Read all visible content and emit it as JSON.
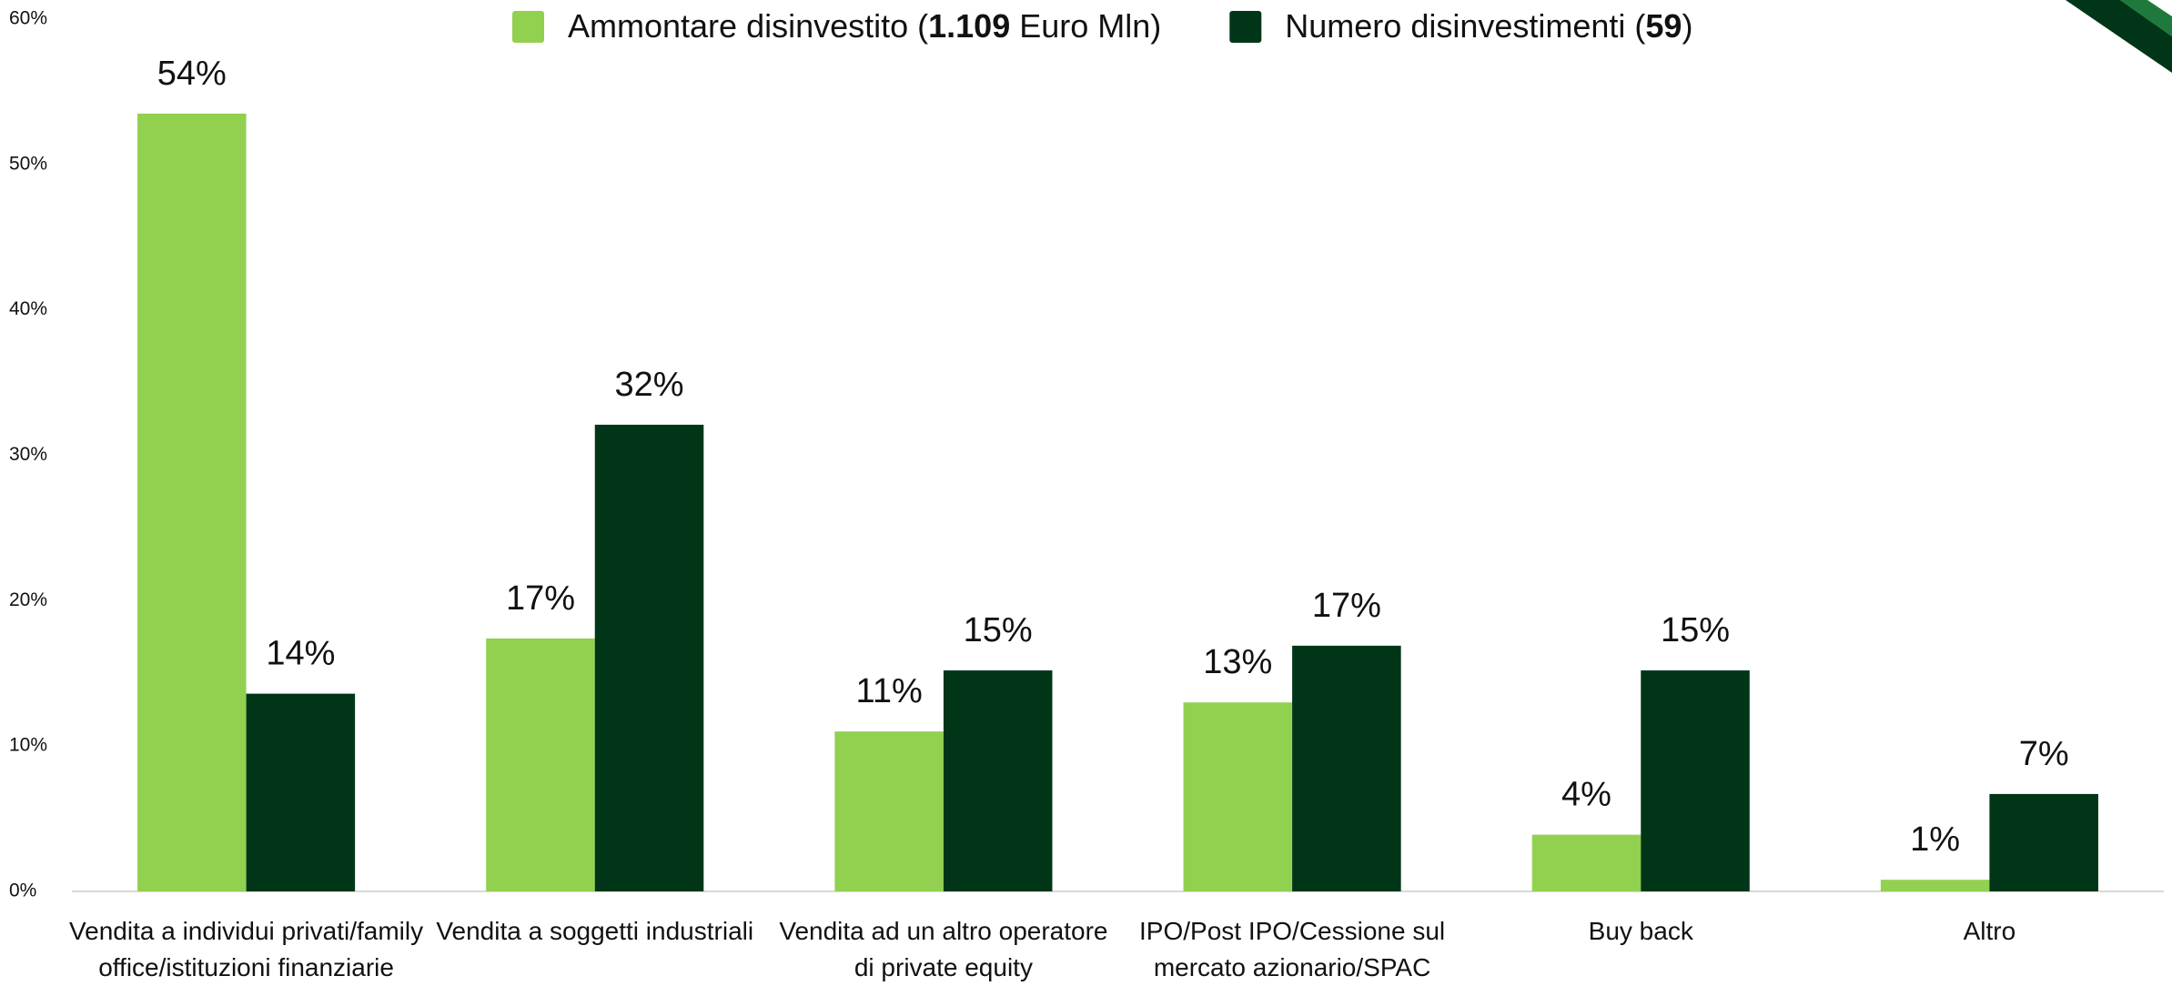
{
  "chart_data": {
    "type": "bar",
    "categories": [
      "Vendita a individui privati/family office/istituzioni finanziarie",
      "Vendita a soggetti industriali",
      "Vendita ad un altro operatore di private equity",
      "IPO/Post IPO/Cessione sul mercato azionario/SPAC",
      "Buy back",
      "Altro"
    ],
    "series": [
      {
        "name": "Ammontare disinvestito (1.109 Euro Mln)",
        "color": "#92d050",
        "values": [
          53.5,
          17.4,
          11.0,
          13.0,
          3.9,
          0.8
        ],
        "value_labels": [
          "54%",
          "17%",
          "11%",
          "13%",
          "4%",
          "1%"
        ]
      },
      {
        "name": "Numero disinvestimenti (59)",
        "color": "#003617",
        "values": [
          13.6,
          32.1,
          15.2,
          16.9,
          15.2,
          6.7
        ],
        "value_labels": [
          "14%",
          "32%",
          "15%",
          "17%",
          "15%",
          "7%"
        ]
      }
    ],
    "ylim": [
      0,
      60
    ],
    "yticks": [
      {
        "value": 0,
        "label": "0%"
      },
      {
        "value": 10,
        "label": "10%"
      },
      {
        "value": 20,
        "label": "20%"
      },
      {
        "value": 30,
        "label": "30%"
      },
      {
        "value": 40,
        "label": "40%"
      },
      {
        "value": 50,
        "label": "50%"
      },
      {
        "value": 60,
        "label": "60%"
      }
    ],
    "grid": false,
    "legend": "top"
  }
}
